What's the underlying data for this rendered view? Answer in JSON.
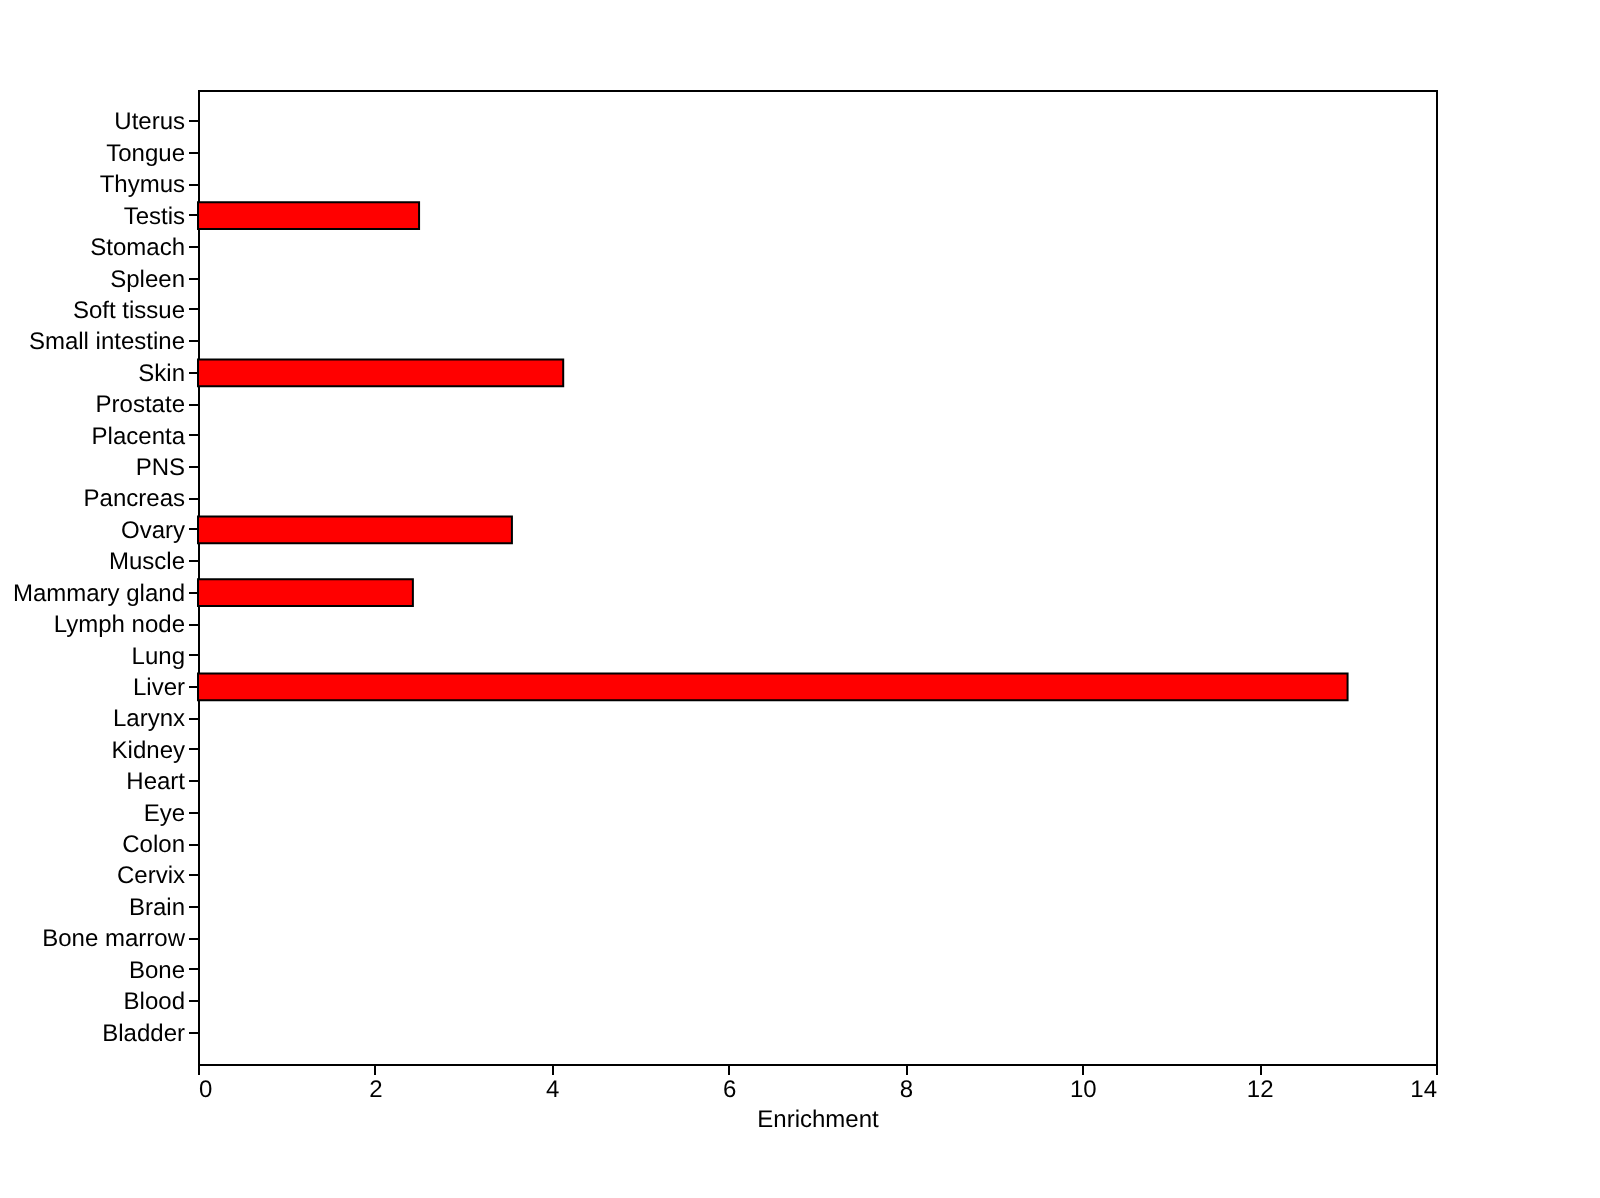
{
  "chart_data": {
    "type": "bar",
    "orientation": "horizontal",
    "xlabel": "Enrichment",
    "categories": [
      "Uterus",
      "Tongue",
      "Thymus",
      "Testis",
      "Stomach",
      "Spleen",
      "Soft tissue",
      "Small intestine",
      "Skin",
      "Prostate",
      "Placenta",
      "PNS",
      "Pancreas",
      "Ovary",
      "Muscle",
      "Mammary gland",
      "Lymph node",
      "Lung",
      "Liver",
      "Larynx",
      "Kidney",
      "Heart",
      "Eye",
      "Colon",
      "Cervix",
      "Brain",
      "Bone marrow",
      "Bone",
      "Blood",
      "Bladder"
    ],
    "values": [
      0,
      0,
      0,
      2.5,
      0,
      0,
      0,
      0,
      4.13,
      0,
      0,
      0,
      0,
      3.55,
      0,
      2.43,
      0,
      0,
      13.0,
      0,
      0,
      0,
      0,
      0,
      0,
      0,
      0,
      0,
      0,
      0
    ],
    "color": "#ff0000",
    "xlim": [
      0,
      14
    ],
    "xticks": [
      0,
      2,
      4,
      6,
      8,
      10,
      12,
      14
    ],
    "grid": false
  }
}
